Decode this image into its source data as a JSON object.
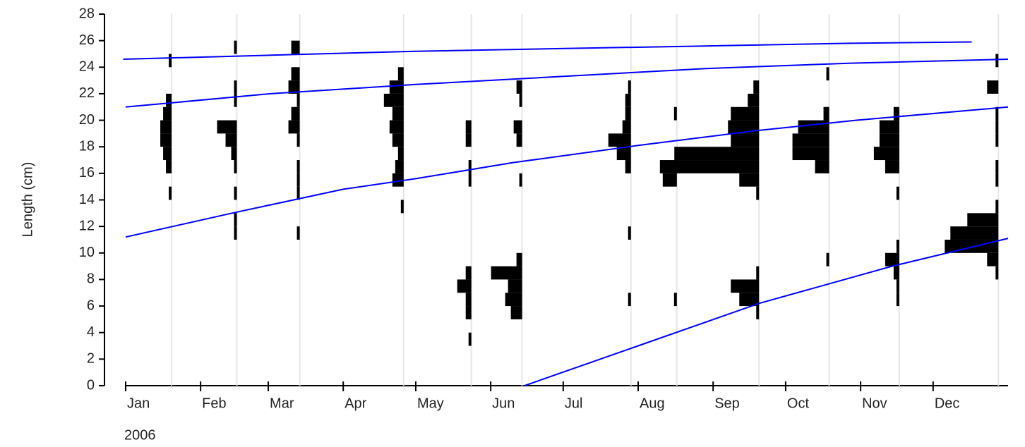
{
  "chart_data": {
    "type": "length-frequency",
    "y_label": "Length (cm)",
    "year_label": "2006",
    "ylim": [
      0,
      28
    ],
    "yticks": [
      0,
      2,
      4,
      6,
      8,
      10,
      12,
      14,
      16,
      18,
      20,
      22,
      24,
      26,
      28
    ],
    "xlim": [
      0,
      365
    ],
    "xticks": [
      {
        "value": 0,
        "label": "Jan"
      },
      {
        "value": 31,
        "label": "Feb"
      },
      {
        "value": 59,
        "label": "Mar"
      },
      {
        "value": 90,
        "label": "Apr"
      },
      {
        "value": 120,
        "label": "May"
      },
      {
        "value": 151,
        "label": "Jun"
      },
      {
        "value": 181,
        "label": "Jul"
      },
      {
        "value": 212,
        "label": "Aug"
      },
      {
        "value": 243,
        "label": "Sep"
      },
      {
        "value": 273,
        "label": "Oct"
      },
      {
        "value": 304,
        "label": "Nov"
      },
      {
        "value": 334,
        "label": "Dec"
      }
    ],
    "bar_color": "#000000",
    "sample_line_color": "#e6e6e6",
    "samples": [
      {
        "x": 19,
        "lengths": [
          14,
          16,
          17,
          18,
          19,
          20,
          21,
          24
        ],
        "values": [
          1,
          2,
          3,
          4,
          4,
          3,
          2,
          1
        ]
      },
      {
        "x": 46,
        "lengths": [
          11,
          12,
          14,
          16,
          17,
          18,
          19,
          21,
          22,
          25
        ],
        "values": [
          1,
          1,
          1,
          1,
          2,
          4,
          7,
          1,
          1,
          1
        ]
      },
      {
        "x": 72,
        "lengths": [
          11,
          14,
          15,
          16,
          18,
          19,
          20,
          21,
          22,
          23,
          25
        ],
        "values": [
          1,
          1,
          1,
          1,
          1,
          4,
          3,
          1,
          4,
          3,
          3
        ]
      },
      {
        "x": 115,
        "lengths": [
          13,
          15,
          16,
          17,
          18,
          19,
          20,
          21,
          22,
          23
        ],
        "values": [
          1,
          4,
          3,
          2,
          4,
          5,
          4,
          7,
          5,
          2
        ]
      },
      {
        "x": 143,
        "lengths": [
          3,
          5,
          6,
          7,
          8,
          15,
          16,
          18,
          19
        ],
        "values": [
          1,
          2,
          2,
          5,
          2,
          1,
          1,
          2,
          2
        ]
      },
      {
        "x": 164,
        "lengths": [
          5,
          6,
          7,
          8,
          9,
          15,
          18,
          19,
          21,
          22
        ],
        "values": [
          4,
          6,
          5,
          11,
          2,
          1,
          2,
          3,
          1,
          2
        ]
      },
      {
        "x": 209,
        "lengths": [
          6,
          11,
          16,
          17,
          18,
          19,
          20,
          21,
          22
        ],
        "values": [
          1,
          1,
          2,
          5,
          8,
          3,
          2,
          2,
          1
        ]
      },
      {
        "x": 228,
        "lengths": [
          6,
          15,
          16,
          20
        ],
        "values": [
          1,
          5,
          6,
          1
        ]
      },
      {
        "x": 262,
        "lengths": [
          5,
          6,
          7,
          8,
          14,
          15,
          16,
          17,
          18,
          19,
          20,
          21,
          22
        ],
        "values": [
          1,
          7,
          10,
          1,
          1,
          7,
          30,
          30,
          10,
          11,
          10,
          4,
          2
        ]
      },
      {
        "x": 291,
        "lengths": [
          9,
          16,
          17,
          18,
          19,
          20,
          23
        ],
        "values": [
          1,
          5,
          13,
          13,
          11,
          2,
          1
        ]
      },
      {
        "x": 320,
        "lengths": [
          6,
          7,
          8,
          9,
          10,
          14,
          16,
          17,
          18,
          19,
          20
        ],
        "values": [
          1,
          1,
          2,
          5,
          1,
          1,
          5,
          9,
          7,
          7,
          2
        ]
      },
      {
        "x": 361,
        "lengths": [
          8,
          9,
          10,
          11,
          12,
          13,
          15,
          16,
          18,
          19,
          20,
          22,
          24
        ],
        "values": [
          1,
          4,
          19,
          17,
          11,
          1,
          1,
          1,
          1,
          1,
          1,
          4,
          1
        ]
      }
    ],
    "curve_color": "#0000ff",
    "curves": [
      {
        "x": [
          -1,
          60,
          120,
          180,
          240,
          300,
          350
        ],
        "y": [
          24.6,
          24.9,
          25.2,
          25.4,
          25.6,
          25.8,
          25.9
        ]
      },
      {
        "x": [
          0,
          60,
          120,
          180,
          240,
          300,
          365
        ],
        "y": [
          21,
          22,
          22.7,
          23.3,
          23.9,
          24.3,
          24.6
        ]
      },
      {
        "x": [
          0,
          44,
          90,
          120,
          160,
          212,
          260,
          302,
          365
        ],
        "y": [
          11.2,
          13,
          14.8,
          15.6,
          16.8,
          18.1,
          19.2,
          20,
          21
        ]
      },
      {
        "x": [
          165,
          212,
          262,
          317,
          365
        ],
        "y": [
          0,
          3,
          6.2,
          9,
          11.1
        ]
      }
    ]
  }
}
